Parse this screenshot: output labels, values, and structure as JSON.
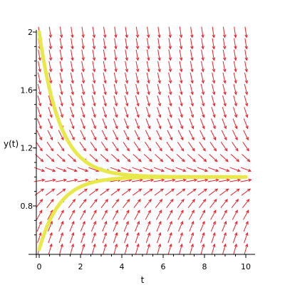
{
  "chart_data": {
    "type": "direction-field",
    "xlabel": "t",
    "ylabel": "y(t)",
    "xlim": [
      0,
      10
    ],
    "ylim": [
      0.5,
      2
    ],
    "x_ticks": [
      {
        "value": 0,
        "label": "0"
      },
      {
        "value": 2,
        "label": "2"
      },
      {
        "value": 4,
        "label": "4"
      },
      {
        "value": 6,
        "label": "6"
      },
      {
        "value": 8,
        "label": "8"
      },
      {
        "value": 10,
        "label": "10"
      }
    ],
    "y_ticks": [
      {
        "value": 0.8,
        "label": "0.8"
      },
      {
        "value": 1.2,
        "label": "1.2"
      },
      {
        "value": 1.6,
        "label": "1.6"
      },
      {
        "value": 2.0,
        "label": "2"
      }
    ],
    "field": {
      "equilibrium": 1.0,
      "decay_rate": 1.0,
      "t_count": 20,
      "y_count": 20,
      "color": "#e8202a"
    },
    "solutions": [
      {
        "y0": 2.0,
        "color": "#e8e84a"
      },
      {
        "y0": 0.5,
        "color": "#e8e84a"
      }
    ],
    "axis_color": "#000000",
    "background": "#ffffff"
  }
}
